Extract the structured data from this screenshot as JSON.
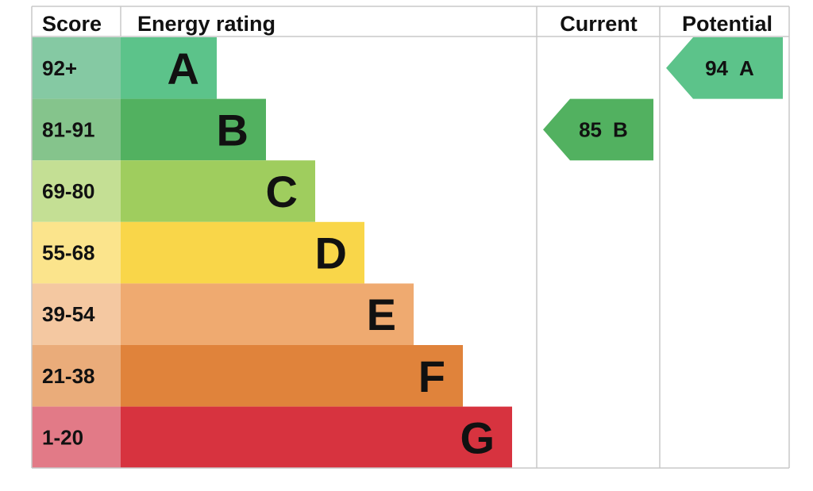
{
  "chart_data": {
    "type": "bar",
    "headers": {
      "score": "Score",
      "energy_rating": "Energy rating",
      "current": "Current",
      "potential": "Potential"
    },
    "bands": [
      {
        "score_range": "92+",
        "letter": "A",
        "band_color": "#5cc38a",
        "score_color": "#85c9a3"
      },
      {
        "score_range": "81-91",
        "letter": "B",
        "band_color": "#52b160",
        "score_color": "#85c48c"
      },
      {
        "score_range": "69-80",
        "letter": "C",
        "band_color": "#9fcd5e",
        "score_color": "#c4df94"
      },
      {
        "score_range": "55-68",
        "letter": "D",
        "band_color": "#f9d649",
        "score_color": "#fbe48c"
      },
      {
        "score_range": "39-54",
        "letter": "E",
        "band_color": "#efaa70",
        "score_color": "#f4c8a1"
      },
      {
        "score_range": "21-38",
        "letter": "F",
        "band_color": "#e0833b",
        "score_color": "#eaac7a"
      },
      {
        "score_range": "1-20",
        "letter": "G",
        "band_color": "#d7333f",
        "score_color": "#e27a87"
      }
    ],
    "current": {
      "value": 85,
      "letter": "B",
      "color": "#52b160"
    },
    "potential": {
      "value": 94,
      "letter": "A",
      "color": "#5cc38a"
    }
  }
}
